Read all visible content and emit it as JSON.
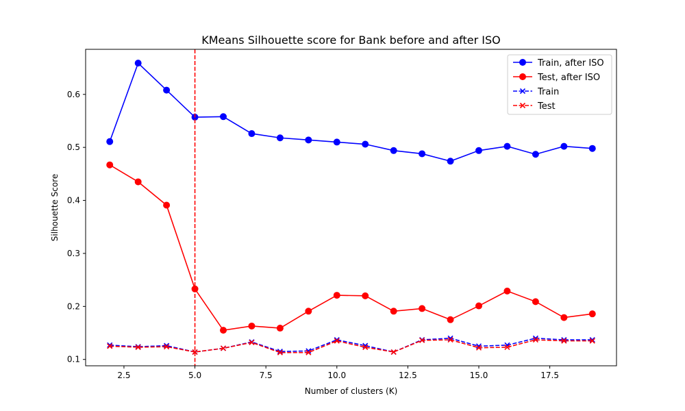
{
  "chart_data": {
    "type": "line",
    "title": "KMeans Silhouette score for Bank before and after ISO",
    "xlabel": "Number of clusters (K)",
    "ylabel": "Silhouette Score",
    "xlim": [
      1.15,
      19.85
    ],
    "ylim": [
      0.088,
      0.685
    ],
    "xticks": [
      2.5,
      5.0,
      7.5,
      10.0,
      12.5,
      15.0,
      17.5
    ],
    "xtick_labels": [
      "2.5",
      "5.0",
      "7.5",
      "10.0",
      "12.5",
      "15.0",
      "17.5"
    ],
    "yticks": [
      0.1,
      0.2,
      0.3,
      0.4,
      0.5,
      0.6
    ],
    "ytick_labels": [
      "0.1",
      "0.2",
      "0.3",
      "0.4",
      "0.5",
      "0.6"
    ],
    "grid": false,
    "legend_position": "top-right",
    "x": [
      2,
      3,
      4,
      5,
      6,
      7,
      8,
      9,
      10,
      11,
      12,
      13,
      14,
      15,
      16,
      17,
      18,
      19
    ],
    "vline": {
      "x": 5,
      "color": "#ff0000",
      "style": "dashed"
    },
    "series": [
      {
        "name": "Train, after ISO",
        "color": "#0000ff",
        "linestyle": "solid",
        "marker": "circle",
        "values": [
          0.511,
          0.659,
          0.608,
          0.557,
          0.558,
          0.526,
          0.518,
          0.514,
          0.51,
          0.506,
          0.494,
          0.488,
          0.474,
          0.494,
          0.502,
          0.487,
          0.502,
          0.498
        ]
      },
      {
        "name": "Test, after ISO",
        "color": "#ff0000",
        "linestyle": "solid",
        "marker": "circle",
        "values": [
          0.467,
          0.435,
          0.391,
          0.233,
          0.155,
          0.163,
          0.159,
          0.191,
          0.221,
          0.22,
          0.191,
          0.196,
          0.175,
          0.201,
          0.229,
          0.209,
          0.179,
          0.186
        ]
      },
      {
        "name": "Train",
        "color": "#0000ff",
        "linestyle": "dashed",
        "marker": "x",
        "values": [
          0.127,
          0.124,
          0.126,
          0.114,
          0.121,
          0.133,
          0.115,
          0.116,
          0.137,
          0.126,
          0.114,
          0.137,
          0.14,
          0.125,
          0.127,
          0.14,
          0.137,
          0.137
        ]
      },
      {
        "name": "Test",
        "color": "#ff0000",
        "linestyle": "dashed",
        "marker": "x",
        "values": [
          0.125,
          0.123,
          0.124,
          0.114,
          0.121,
          0.132,
          0.113,
          0.113,
          0.135,
          0.123,
          0.114,
          0.136,
          0.137,
          0.122,
          0.123,
          0.137,
          0.135,
          0.135
        ]
      }
    ]
  }
}
